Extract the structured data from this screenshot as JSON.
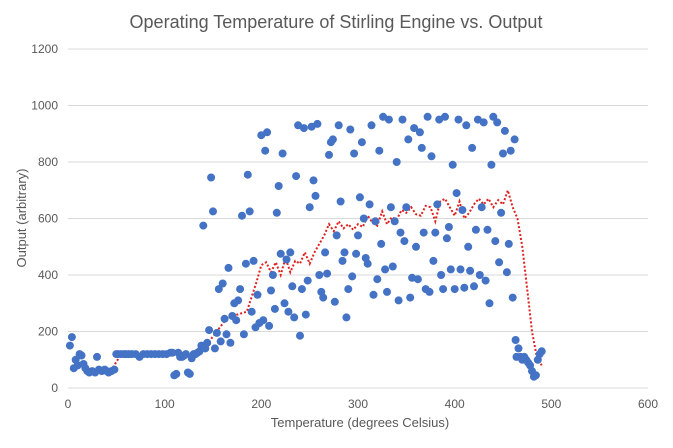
{
  "chart_data": {
    "type": "scatter",
    "title": "Operating Temperature of Stirling Engine vs. Output",
    "xlabel": "Temperature (degrees Celsius)",
    "ylabel": "Output (arbitrary)",
    "xlim": [
      0,
      600
    ],
    "ylim": [
      0,
      1200
    ],
    "x_ticks": [
      "0",
      "100",
      "200",
      "300",
      "400",
      "500",
      "600"
    ],
    "y_ticks": [
      "0",
      "200",
      "400",
      "600",
      "800",
      "1000",
      "1200"
    ],
    "grid": "horizontal",
    "legend": "none",
    "colors": {
      "points": "#4472c4",
      "trend": "#e01f1f",
      "grid": "#d9d9d9",
      "text": "#595959"
    },
    "series": [
      {
        "kind": "scatter",
        "points": [
          [
            2,
            150
          ],
          [
            4,
            180
          ],
          [
            6,
            70
          ],
          [
            8,
            100
          ],
          [
            10,
            80
          ],
          [
            12,
            120
          ],
          [
            14,
            115
          ],
          [
            16,
            85
          ],
          [
            18,
            70
          ],
          [
            20,
            60
          ],
          [
            22,
            55
          ],
          [
            25,
            60
          ],
          [
            28,
            55
          ],
          [
            30,
            110
          ],
          [
            32,
            65
          ],
          [
            35,
            60
          ],
          [
            38,
            65
          ],
          [
            40,
            60
          ],
          [
            42,
            55
          ],
          [
            45,
            60
          ],
          [
            48,
            65
          ],
          [
            50,
            120
          ],
          [
            52,
            120
          ],
          [
            55,
            120
          ],
          [
            58,
            120
          ],
          [
            60,
            120
          ],
          [
            63,
            120
          ],
          [
            66,
            120
          ],
          [
            70,
            120
          ],
          [
            74,
            110
          ],
          [
            78,
            120
          ],
          [
            82,
            120
          ],
          [
            86,
            120
          ],
          [
            90,
            120
          ],
          [
            94,
            120
          ],
          [
            98,
            120
          ],
          [
            102,
            120
          ],
          [
            106,
            125
          ],
          [
            108,
            125
          ],
          [
            110,
            45
          ],
          [
            112,
            50
          ],
          [
            114,
            125
          ],
          [
            116,
            110
          ],
          [
            118,
            110
          ],
          [
            120,
            115
          ],
          [
            122,
            120
          ],
          [
            124,
            55
          ],
          [
            126,
            50
          ],
          [
            128,
            105
          ],
          [
            130,
            120
          ],
          [
            132,
            120
          ],
          [
            134,
            125
          ],
          [
            136,
            130
          ],
          [
            138,
            150
          ],
          [
            140,
            575
          ],
          [
            142,
            140
          ],
          [
            144,
            160
          ],
          [
            146,
            205
          ],
          [
            148,
            745
          ],
          [
            150,
            625
          ],
          [
            152,
            140
          ],
          [
            154,
            195
          ],
          [
            156,
            350
          ],
          [
            158,
            165
          ],
          [
            160,
            370
          ],
          [
            162,
            245
          ],
          [
            164,
            190
          ],
          [
            166,
            425
          ],
          [
            168,
            160
          ],
          [
            170,
            255
          ],
          [
            172,
            300
          ],
          [
            174,
            240
          ],
          [
            176,
            310
          ],
          [
            178,
            350
          ],
          [
            180,
            610
          ],
          [
            182,
            190
          ],
          [
            184,
            440
          ],
          [
            186,
            755
          ],
          [
            188,
            625
          ],
          [
            190,
            270
          ],
          [
            192,
            450
          ],
          [
            194,
            215
          ],
          [
            196,
            330
          ],
          [
            198,
            230
          ],
          [
            200,
            895
          ],
          [
            202,
            240
          ],
          [
            204,
            840
          ],
          [
            206,
            905
          ],
          [
            208,
            220
          ],
          [
            210,
            345
          ],
          [
            212,
            400
          ],
          [
            214,
            280
          ],
          [
            216,
            620
          ],
          [
            218,
            715
          ],
          [
            220,
            475
          ],
          [
            222,
            830
          ],
          [
            224,
            300
          ],
          [
            226,
            455
          ],
          [
            228,
            270
          ],
          [
            230,
            480
          ],
          [
            232,
            360
          ],
          [
            234,
            250
          ],
          [
            236,
            750
          ],
          [
            238,
            930
          ],
          [
            240,
            185
          ],
          [
            242,
            350
          ],
          [
            244,
            920
          ],
          [
            246,
            260
          ],
          [
            248,
            380
          ],
          [
            250,
            640
          ],
          [
            252,
            925
          ],
          [
            254,
            735
          ],
          [
            256,
            680
          ],
          [
            258,
            935
          ],
          [
            260,
            400
          ],
          [
            262,
            340
          ],
          [
            264,
            320
          ],
          [
            266,
            480
          ],
          [
            268,
            405
          ],
          [
            270,
            825
          ],
          [
            272,
            870
          ],
          [
            274,
            880
          ],
          [
            276,
            305
          ],
          [
            278,
            540
          ],
          [
            280,
            930
          ],
          [
            282,
            660
          ],
          [
            284,
            450
          ],
          [
            286,
            480
          ],
          [
            288,
            250
          ],
          [
            290,
            350
          ],
          [
            292,
            915
          ],
          [
            294,
            395
          ],
          [
            296,
            830
          ],
          [
            298,
            475
          ],
          [
            300,
            540
          ],
          [
            302,
            675
          ],
          [
            304,
            870
          ],
          [
            306,
            600
          ],
          [
            308,
            460
          ],
          [
            310,
            440
          ],
          [
            312,
            650
          ],
          [
            314,
            930
          ],
          [
            316,
            330
          ],
          [
            318,
            590
          ],
          [
            320,
            385
          ],
          [
            322,
            840
          ],
          [
            324,
            510
          ],
          [
            326,
            960
          ],
          [
            328,
            420
          ],
          [
            330,
            340
          ],
          [
            332,
            950
          ],
          [
            334,
            640
          ],
          [
            336,
            430
          ],
          [
            338,
            590
          ],
          [
            340,
            800
          ],
          [
            342,
            310
          ],
          [
            344,
            550
          ],
          [
            346,
            950
          ],
          [
            348,
            520
          ],
          [
            350,
            640
          ],
          [
            352,
            880
          ],
          [
            354,
            320
          ],
          [
            356,
            390
          ],
          [
            358,
            920
          ],
          [
            360,
            500
          ],
          [
            362,
            385
          ],
          [
            364,
            905
          ],
          [
            366,
            850
          ],
          [
            368,
            550
          ],
          [
            370,
            350
          ],
          [
            372,
            960
          ],
          [
            374,
            340
          ],
          [
            376,
            820
          ],
          [
            378,
            450
          ],
          [
            380,
            550
          ],
          [
            382,
            650
          ],
          [
            384,
            950
          ],
          [
            386,
            400
          ],
          [
            388,
            350
          ],
          [
            390,
            960
          ],
          [
            392,
            530
          ],
          [
            394,
            570
          ],
          [
            396,
            420
          ],
          [
            398,
            790
          ],
          [
            400,
            350
          ],
          [
            402,
            690
          ],
          [
            404,
            950
          ],
          [
            406,
            420
          ],
          [
            408,
            630
          ],
          [
            410,
            355
          ],
          [
            412,
            930
          ],
          [
            414,
            500
          ],
          [
            416,
            415
          ],
          [
            418,
            850
          ],
          [
            420,
            360
          ],
          [
            422,
            560
          ],
          [
            424,
            950
          ],
          [
            426,
            400
          ],
          [
            428,
            640
          ],
          [
            430,
            940
          ],
          [
            432,
            380
          ],
          [
            434,
            560
          ],
          [
            436,
            300
          ],
          [
            438,
            790
          ],
          [
            440,
            960
          ],
          [
            442,
            520
          ],
          [
            444,
            940
          ],
          [
            446,
            445
          ],
          [
            448,
            620
          ],
          [
            450,
            830
          ],
          [
            452,
            910
          ],
          [
            454,
            410
          ],
          [
            456,
            510
          ],
          [
            458,
            840
          ],
          [
            460,
            320
          ],
          [
            462,
            880
          ],
          [
            463,
            170
          ],
          [
            464,
            110
          ],
          [
            466,
            140
          ],
          [
            468,
            110
          ],
          [
            470,
            100
          ],
          [
            472,
            110
          ],
          [
            474,
            100
          ],
          [
            476,
            90
          ],
          [
            478,
            80
          ],
          [
            480,
            60
          ],
          [
            482,
            40
          ],
          [
            484,
            45
          ],
          [
            486,
            100
          ],
          [
            488,
            120
          ],
          [
            490,
            130
          ]
        ]
      },
      {
        "kind": "trendline",
        "name": "",
        "style": "dotted",
        "points": [
          [
            5,
            95
          ],
          [
            15,
            70
          ],
          [
            25,
            60
          ],
          [
            35,
            65
          ],
          [
            45,
            65
          ],
          [
            55,
            120
          ],
          [
            65,
            120
          ],
          [
            75,
            115
          ],
          [
            85,
            120
          ],
          [
            95,
            120
          ],
          [
            105,
            120
          ],
          [
            115,
            115
          ],
          [
            125,
            115
          ],
          [
            135,
            135
          ],
          [
            145,
            160
          ],
          [
            155,
            205
          ],
          [
            165,
            250
          ],
          [
            175,
            260
          ],
          [
            185,
            270
          ],
          [
            195,
            375
          ],
          [
            200,
            435
          ],
          [
            205,
            445
          ],
          [
            210,
            410
          ],
          [
            215,
            445
          ],
          [
            220,
            400
          ],
          [
            225,
            460
          ],
          [
            230,
            410
          ],
          [
            235,
            450
          ],
          [
            240,
            440
          ],
          [
            245,
            480
          ],
          [
            250,
            440
          ],
          [
            255,
            480
          ],
          [
            260,
            510
          ],
          [
            265,
            540
          ],
          [
            270,
            580
          ],
          [
            275,
            555
          ],
          [
            280,
            590
          ],
          [
            285,
            565
          ],
          [
            290,
            580
          ],
          [
            295,
            560
          ],
          [
            300,
            580
          ],
          [
            305,
            570
          ],
          [
            310,
            610
          ],
          [
            315,
            585
          ],
          [
            320,
            575
          ],
          [
            325,
            625
          ],
          [
            330,
            580
          ],
          [
            335,
            605
          ],
          [
            340,
            595
          ],
          [
            345,
            630
          ],
          [
            350,
            620
          ],
          [
            355,
            640
          ],
          [
            360,
            615
          ],
          [
            365,
            610
          ],
          [
            370,
            645
          ],
          [
            375,
            640
          ],
          [
            380,
            590
          ],
          [
            385,
            660
          ],
          [
            390,
            670
          ],
          [
            395,
            640
          ],
          [
            400,
            610
          ],
          [
            405,
            660
          ],
          [
            410,
            600
          ],
          [
            415,
            620
          ],
          [
            420,
            650
          ],
          [
            425,
            670
          ],
          [
            430,
            650
          ],
          [
            435,
            670
          ],
          [
            440,
            640
          ],
          [
            445,
            665
          ],
          [
            450,
            650
          ],
          [
            455,
            700
          ],
          [
            460,
            640
          ],
          [
            465,
            600
          ],
          [
            470,
            500
          ],
          [
            475,
            350
          ],
          [
            480,
            200
          ],
          [
            485,
            110
          ],
          [
            490,
            80
          ]
        ]
      }
    ]
  }
}
